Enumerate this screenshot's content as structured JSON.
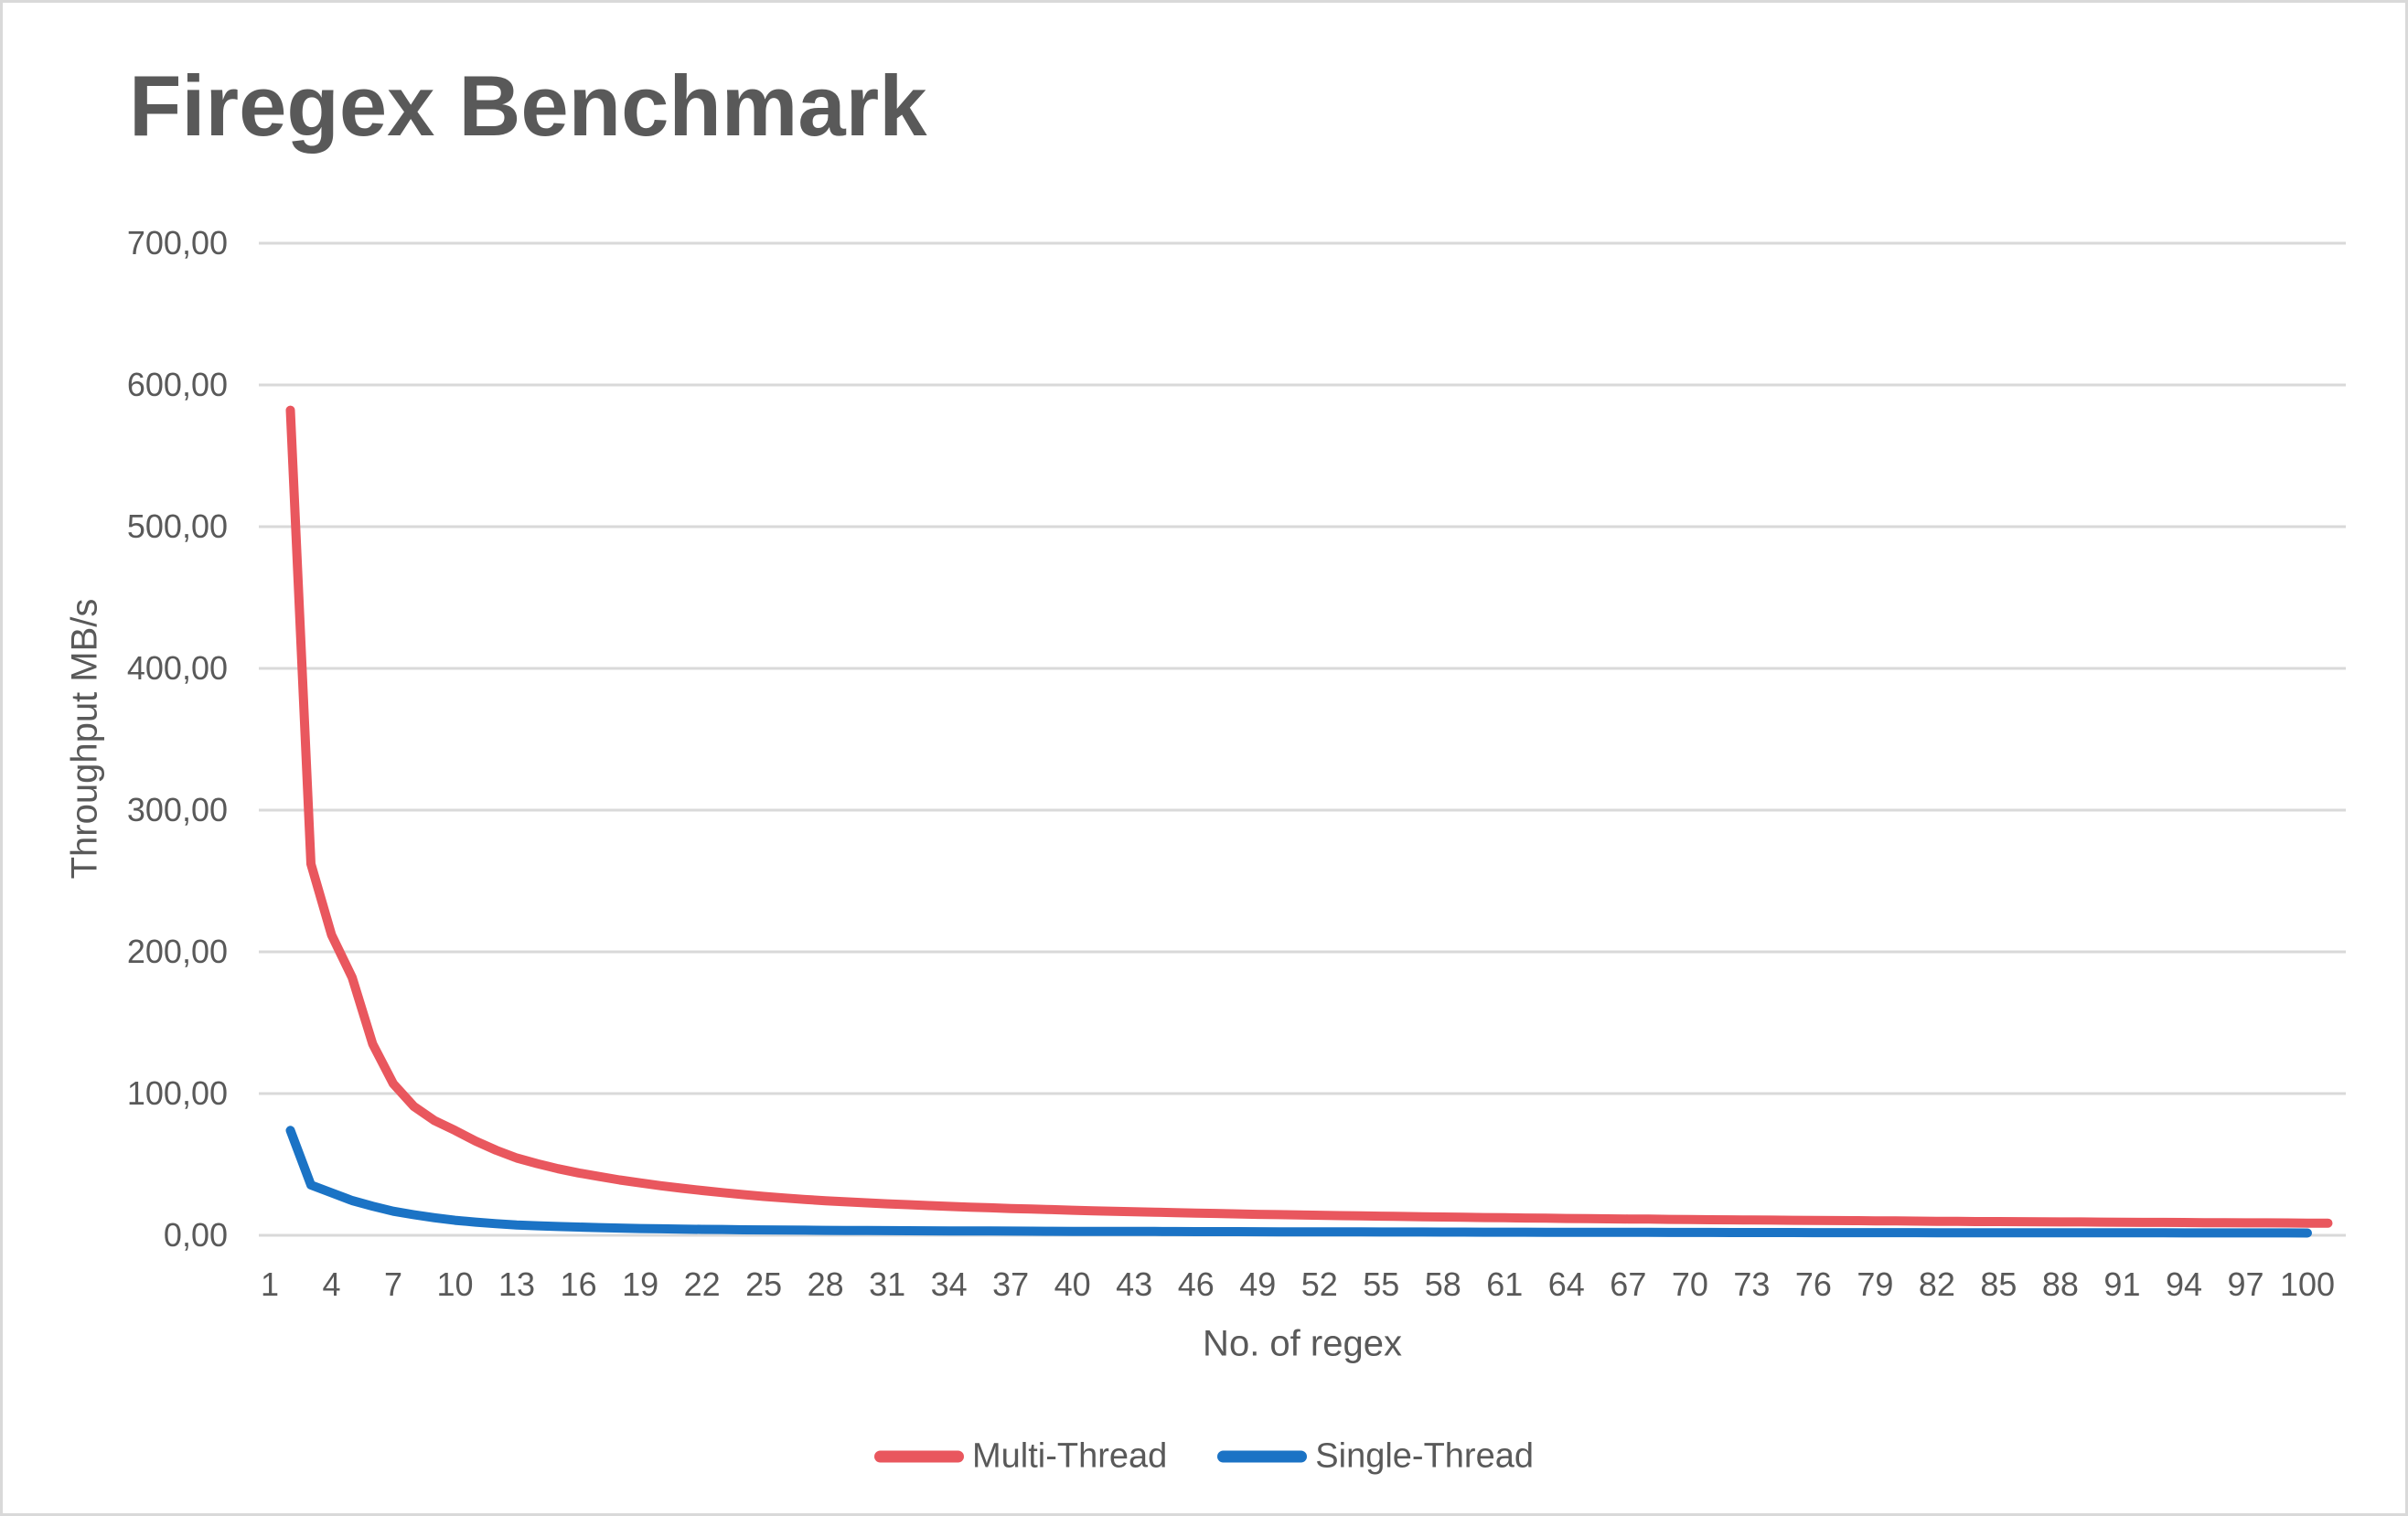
{
  "chart_data": {
    "type": "line",
    "title": "Firegex Benchmark",
    "xlabel": "No. of regex",
    "ylabel": "Throughput MB/s",
    "ylim": [
      0,
      700
    ],
    "grid": "horizontal",
    "legend_position": "bottom-center",
    "text_color": "#595959",
    "grid_color": "#d9d9d9",
    "y_ticks": {
      "values": [
        0,
        100,
        200,
        300,
        400,
        500,
        600,
        700
      ],
      "labels": [
        "0,00",
        "100,00",
        "200,00",
        "300,00",
        "400,00",
        "500,00",
        "600,00",
        "700,00"
      ]
    },
    "x_range": [
      1,
      100
    ],
    "x_ticks": [
      1,
      4,
      7,
      10,
      13,
      16,
      19,
      22,
      25,
      28,
      31,
      34,
      37,
      40,
      43,
      46,
      49,
      52,
      55,
      58,
      61,
      64,
      67,
      70,
      73,
      76,
      79,
      82,
      85,
      88,
      91,
      94,
      97,
      100
    ],
    "series": [
      {
        "name": "Multi-Thread",
        "color": "#e9575e",
        "values": [
          null,
          582.2,
          262,
          212,
          182,
          135,
          107,
          91,
          81,
          74,
          66.5,
          60,
          54.5,
          50.5,
          47,
          44,
          41.5,
          39,
          37,
          35,
          33.2,
          31.6,
          30.1,
          28.7,
          27.4,
          26.3,
          25.3,
          24.4,
          23.6,
          22.9,
          22.2,
          21.6,
          21,
          20.4,
          19.9,
          19.4,
          18.9,
          18.5,
          18.1,
          17.7,
          17.3,
          16.9,
          16.6,
          16.3,
          16,
          15.7,
          15.4,
          15.1,
          14.8,
          14.6,
          14.3,
          14.1,
          13.9,
          13.7,
          13.5,
          13.3,
          13.1,
          12.9,
          12.7,
          12.5,
          12.4,
          12.2,
          12.1,
          11.9,
          11.8,
          11.6,
          11.5,
          11.4,
          11.2,
          11.1,
          11,
          10.9,
          10.8,
          10.7,
          10.6,
          10.5,
          10.4,
          10.3,
          10.2,
          10.1,
          10,
          9.9,
          9.8,
          9.7,
          9.7,
          9.6,
          9.5,
          9.4,
          9.4,
          9.3,
          9.2,
          9.1,
          9.1,
          9,
          8.9,
          8.9,
          8.8,
          8.8,
          8.7,
          8.6,
          8.6
        ]
      },
      {
        "name": "Single-Thread",
        "color": "#1b73c5",
        "values": [
          null,
          74,
          35.5,
          30,
          24.5,
          20.5,
          17,
          14.5,
          12.4,
          10.6,
          9.3,
          8.2,
          7.3,
          6.7,
          6.2,
          5.8,
          5.4,
          5.1,
          4.8,
          4.6,
          4.4,
          4.2,
          4.1,
          3.9,
          3.8,
          3.7,
          3.6,
          3.5,
          3.4,
          3.35,
          3.3,
          3.2,
          3.15,
          3.1,
          3.05,
          3,
          2.95,
          2.9,
          2.85,
          2.8,
          2.78,
          2.75,
          2.72,
          2.7,
          2.65,
          2.6,
          2.58,
          2.55,
          2.5,
          2.48,
          2.45,
          2.42,
          2.4,
          2.38,
          2.35,
          2.32,
          2.3,
          2.28,
          2.25,
          2.22,
          2.2,
          2.18,
          2.15,
          2.12,
          2.1,
          2.08,
          2.06,
          2.04,
          2.02,
          2,
          1.98,
          1.96,
          1.95,
          1.93,
          1.92,
          1.9,
          1.89,
          1.88,
          1.86,
          1.85,
          1.84,
          1.82,
          1.81,
          1.8,
          1.79,
          1.78,
          1.77,
          1.76,
          1.75,
          1.74,
          1.73,
          1.72,
          1.71,
          1.7,
          1.69,
          1.68,
          1.67,
          1.66,
          1.65,
          1.64
        ]
      }
    ]
  }
}
